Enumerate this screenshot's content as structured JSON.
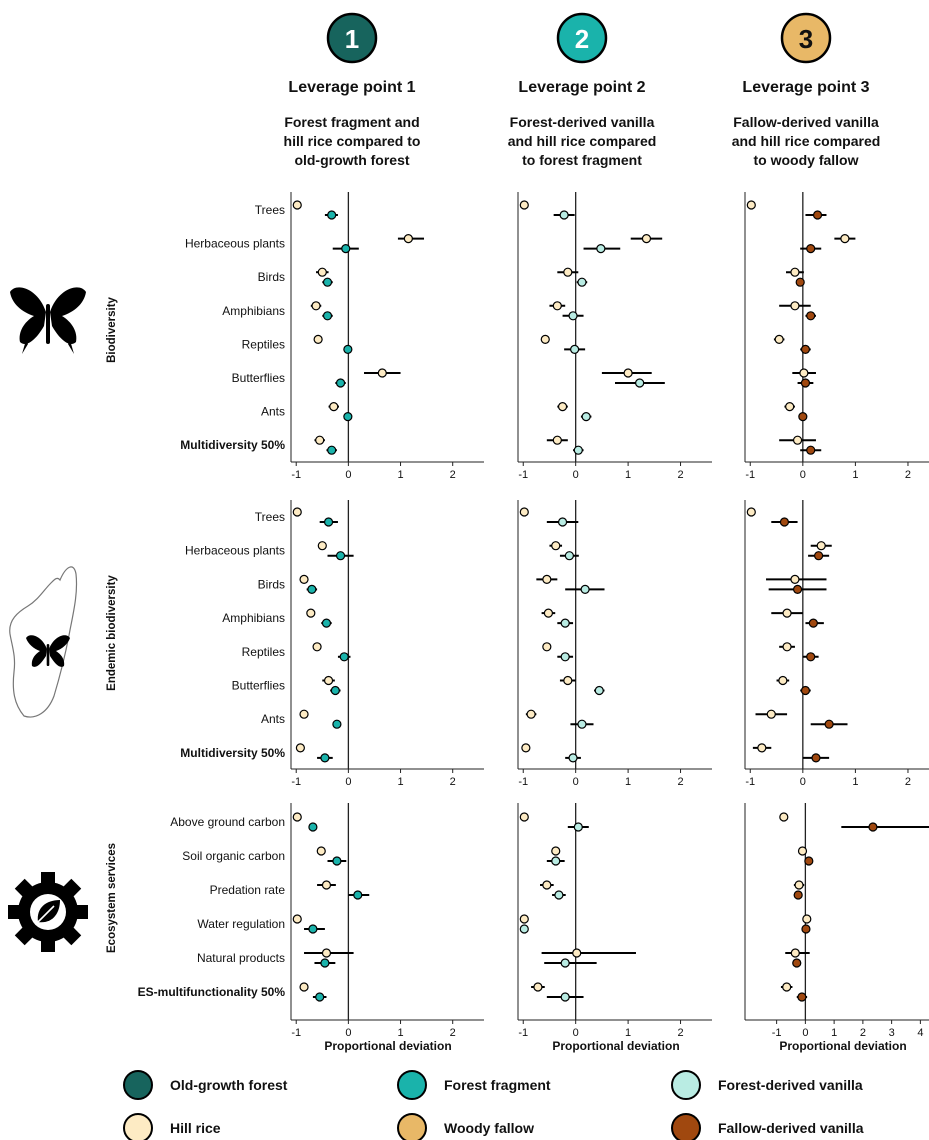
{
  "leverage_points": [
    {
      "badge": "1",
      "title": "Leverage point 1",
      "subtitle": [
        "Forest fragment and",
        "hill rice compared to",
        "old-growth forest"
      ],
      "color": "#17645d"
    },
    {
      "badge": "2",
      "title": "Leverage point 2",
      "subtitle": [
        "Forest-derived vanilla",
        "and hill rice compared",
        "to forest fragment"
      ],
      "color": "#1ab3ab"
    },
    {
      "badge": "3",
      "title": "Leverage point 3",
      "subtitle": [
        "Fallow-derived vanilla",
        "and hill rice compared",
        "to woody fallow"
      ],
      "color": "#e8b867"
    }
  ],
  "groups": [
    {
      "label": "Biodiversity",
      "icon": "butterfly-icon"
    },
    {
      "label": "Endemic biodiversity",
      "icon": "madagascar-butterfly-icon"
    },
    {
      "label": "Ecosystem services",
      "icon": "gear-leaf-icon"
    }
  ],
  "axis_title": "Proportional deviation",
  "legend": [
    {
      "label": "Old-growth forest",
      "color": "#17645d"
    },
    {
      "label": "Forest fragment",
      "color": "#1ab3ab"
    },
    {
      "label": "Forest-derived vanilla",
      "color": "#b9ece3"
    },
    {
      "label": "Hill rice",
      "color": "#fdebc4"
    },
    {
      "label": "Woody fallow",
      "color": "#e8b867"
    },
    {
      "label": "Fallow-derived vanilla",
      "color": "#a0480f"
    }
  ],
  "chart_data": {
    "type": "scatter",
    "description_of_values": "Point estimate with error bar (lo, hi) of proportional deviation relative to the reference land use",
    "xlim_lp12": [
      -1.1,
      2.6
    ],
    "xlim_lp3_rows_1_2": [
      -1.1,
      2.4
    ],
    "xlim_lp3_row_3": [
      -2.1,
      4.3
    ],
    "xticks_lp12": [
      "-1",
      "0",
      "1",
      "2"
    ],
    "xticks_lp3_rows_1_2": [
      "-1",
      "0",
      "1",
      "2"
    ],
    "xticks_lp3_row_3": [
      "-1",
      "0",
      "1",
      "2",
      "3",
      "4"
    ],
    "series_colors": {
      "a_lp1": "#fdebc4",
      "b_lp1": "#1ab3ab",
      "a_lp2": "#fdebc4",
      "b_lp2": "#b9ece3",
      "a_lp3": "#fdebc4",
      "b_lp3": "#a0480f"
    },
    "series_names": {
      "a": "Hill rice",
      "b_lp1": "Forest fragment",
      "b_lp2": "Forest-derived vanilla",
      "b_lp3": "Fallow-derived vanilla"
    },
    "panels": [
      {
        "group": "Biodiversity",
        "rows": [
          "Trees",
          "Herbaceous plants",
          "Birds",
          "Amphibians",
          "Reptiles",
          "Butterflies",
          "Ants",
          "Multidiversity 50%"
        ],
        "bold_rows": [
          7
        ],
        "lp": [
          {
            "a": [
              [
                -0.98,
                -0.98,
                -0.98
              ],
              [
                1.15,
                0.95,
                1.45
              ],
              [
                -0.5,
                -0.62,
                -0.38
              ],
              [
                -0.62,
                -0.72,
                -0.52
              ],
              [
                -0.58,
                -0.62,
                -0.54
              ],
              [
                0.65,
                0.3,
                1.0
              ],
              [
                -0.28,
                -0.38,
                -0.18
              ],
              [
                -0.55,
                -0.65,
                -0.45
              ]
            ],
            "b": [
              [
                -0.32,
                -0.45,
                -0.2
              ],
              [
                -0.05,
                -0.3,
                0.2
              ],
              [
                -0.4,
                -0.5,
                -0.3
              ],
              [
                -0.4,
                -0.5,
                -0.3
              ],
              [
                -0.01,
                -0.05,
                0.03
              ],
              [
                -0.15,
                -0.25,
                -0.05
              ],
              [
                -0.01,
                -0.05,
                0.03
              ],
              [
                -0.32,
                -0.42,
                -0.22
              ]
            ]
          },
          {
            "a": [
              [
                -0.98,
                -0.98,
                -0.98
              ],
              [
                1.35,
                1.05,
                1.65
              ],
              [
                -0.15,
                -0.35,
                0.05
              ],
              [
                -0.35,
                -0.5,
                -0.2
              ],
              [
                -0.58,
                -0.62,
                -0.54
              ],
              [
                1.0,
                0.5,
                1.45
              ],
              [
                -0.25,
                -0.35,
                -0.15
              ],
              [
                -0.35,
                -0.55,
                -0.15
              ]
            ],
            "b": [
              [
                -0.22,
                -0.42,
                -0.02
              ],
              [
                0.48,
                0.15,
                0.85
              ],
              [
                0.12,
                0.02,
                0.22
              ],
              [
                -0.05,
                -0.25,
                0.15
              ],
              [
                -0.02,
                -0.22,
                0.18
              ],
              [
                1.22,
                0.75,
                1.7
              ],
              [
                0.2,
                0.1,
                0.3
              ],
              [
                0.05,
                -0.05,
                0.15
              ]
            ]
          },
          {
            "a": [
              [
                -0.98,
                -0.98,
                -0.98
              ],
              [
                0.8,
                0.6,
                1.0
              ],
              [
                -0.15,
                -0.32,
                0.02
              ],
              [
                -0.15,
                -0.45,
                0.15
              ],
              [
                -0.45,
                -0.55,
                -0.35
              ],
              [
                0.02,
                -0.2,
                0.25
              ],
              [
                -0.25,
                -0.35,
                -0.15
              ],
              [
                -0.1,
                -0.45,
                0.25
              ]
            ],
            "b": [
              [
                0.28,
                0.05,
                0.45
              ],
              [
                0.15,
                -0.05,
                0.35
              ],
              [
                -0.05,
                -0.1,
                0.0
              ],
              [
                0.15,
                0.05,
                0.25
              ],
              [
                0.05,
                -0.05,
                0.15
              ],
              [
                0.05,
                -0.1,
                0.2
              ],
              [
                0.0,
                -0.05,
                0.05
              ],
              [
                0.15,
                -0.05,
                0.35
              ]
            ]
          }
        ]
      },
      {
        "group": "Endemic biodiversity",
        "rows": [
          "Trees",
          "Herbaceous plants",
          "Birds",
          "Amphibians",
          "Reptiles",
          "Butterflies",
          "Ants",
          "Multidiversity 50%"
        ],
        "bold_rows": [
          7
        ],
        "lp": [
          {
            "a": [
              [
                -0.98,
                -0.98,
                -0.98
              ],
              [
                -0.5,
                -0.55,
                -0.45
              ],
              [
                -0.85,
                -0.9,
                -0.8
              ],
              [
                -0.72,
                -0.8,
                -0.64
              ],
              [
                -0.6,
                -0.64,
                -0.56
              ],
              [
                -0.38,
                -0.5,
                -0.26
              ],
              [
                -0.85,
                -0.9,
                -0.8
              ],
              [
                -0.92,
                -0.96,
                -0.88
              ]
            ],
            "b": [
              [
                -0.38,
                -0.55,
                -0.2
              ],
              [
                -0.15,
                -0.4,
                0.1
              ],
              [
                -0.7,
                -0.8,
                -0.6
              ],
              [
                -0.42,
                -0.52,
                -0.32
              ],
              [
                -0.08,
                -0.2,
                0.04
              ],
              [
                -0.25,
                -0.35,
                -0.15
              ],
              [
                -0.22,
                -0.26,
                -0.18
              ],
              [
                -0.45,
                -0.6,
                -0.3
              ]
            ]
          },
          {
            "a": [
              [
                -0.98,
                -0.98,
                -0.98
              ],
              [
                -0.38,
                -0.5,
                -0.26
              ],
              [
                -0.55,
                -0.75,
                -0.35
              ],
              [
                -0.52,
                -0.65,
                -0.39
              ],
              [
                -0.55,
                -0.6,
                -0.5
              ],
              [
                -0.15,
                -0.3,
                0.0
              ],
              [
                -0.85,
                -0.95,
                -0.75
              ],
              [
                -0.95,
                -0.99,
                -0.91
              ]
            ],
            "b": [
              [
                -0.25,
                -0.55,
                0.05
              ],
              [
                -0.12,
                -0.3,
                0.06
              ],
              [
                0.18,
                -0.2,
                0.55
              ],
              [
                -0.2,
                -0.35,
                -0.05
              ],
              [
                -0.2,
                -0.35,
                -0.05
              ],
              [
                0.45,
                0.35,
                0.55
              ],
              [
                0.12,
                -0.1,
                0.34
              ],
              [
                -0.05,
                -0.2,
                0.1
              ]
            ]
          },
          {
            "a": [
              [
                -0.98,
                -0.98,
                -0.98
              ],
              [
                0.35,
                0.15,
                0.55
              ],
              [
                -0.15,
                -0.7,
                0.45
              ],
              [
                -0.3,
                -0.6,
                0.0
              ],
              [
                -0.3,
                -0.45,
                -0.15
              ],
              [
                -0.38,
                -0.5,
                -0.26
              ],
              [
                -0.6,
                -0.9,
                -0.3
              ],
              [
                -0.78,
                -0.95,
                -0.6
              ]
            ],
            "b": [
              [
                -0.35,
                -0.6,
                -0.1
              ],
              [
                0.3,
                0.1,
                0.5
              ],
              [
                -0.1,
                -0.65,
                0.45
              ],
              [
                0.2,
                0.05,
                0.4
              ],
              [
                0.15,
                0.0,
                0.3
              ],
              [
                0.05,
                -0.05,
                0.15
              ],
              [
                0.5,
                0.15,
                0.85
              ],
              [
                0.25,
                0.0,
                0.5
              ]
            ]
          }
        ]
      },
      {
        "group": "Ecosystem services",
        "rows": [
          "Above ground carbon",
          "Soil organic carbon",
          "Predation rate",
          "Water regulation",
          "Natural products",
          "ES-multifunctionality 50%"
        ],
        "bold_rows": [
          5
        ],
        "lp": [
          {
            "a": [
              [
                -0.98,
                -0.98,
                -0.98
              ],
              [
                -0.52,
                -0.56,
                -0.48
              ],
              [
                -0.42,
                -0.6,
                -0.24
              ],
              [
                -0.98,
                -0.98,
                -0.98
              ],
              [
                -0.42,
                -0.85,
                0.1
              ],
              [
                -0.85,
                -0.9,
                -0.8
              ]
            ],
            "b": [
              [
                -0.68,
                -0.75,
                -0.61
              ],
              [
                -0.22,
                -0.4,
                -0.04
              ],
              [
                0.18,
                0.0,
                0.4
              ],
              [
                -0.68,
                -0.85,
                -0.45
              ],
              [
                -0.45,
                -0.65,
                -0.25
              ],
              [
                -0.55,
                -0.68,
                -0.42
              ]
            ]
          },
          {
            "a": [
              [
                -0.98,
                -0.98,
                -0.98
              ],
              [
                -0.38,
                -0.45,
                -0.31
              ],
              [
                -0.55,
                -0.68,
                -0.42
              ],
              [
                -0.98,
                -0.98,
                -0.98
              ],
              [
                0.02,
                -0.65,
                1.15
              ],
              [
                -0.72,
                -0.85,
                -0.59
              ]
            ],
            "b": [
              [
                0.05,
                -0.15,
                0.25
              ],
              [
                -0.38,
                -0.55,
                -0.21
              ],
              [
                -0.32,
                -0.45,
                -0.19
              ],
              [
                -0.98,
                -0.98,
                -0.98
              ],
              [
                -0.2,
                -0.6,
                0.4
              ],
              [
                -0.2,
                -0.55,
                0.15
              ]
            ]
          },
          {
            "a": [
              [
                -0.75,
                -0.75,
                -0.75
              ],
              [
                -0.1,
                -0.2,
                0.0
              ],
              [
                -0.22,
                -0.4,
                -0.04
              ],
              [
                0.05,
                0.0,
                0.1
              ],
              [
                -0.35,
                -0.7,
                0.15
              ],
              [
                -0.65,
                -0.85,
                -0.45
              ]
            ],
            "b": [
              [
                2.35,
                1.25,
                4.3
              ],
              [
                0.12,
                0.02,
                0.22
              ],
              [
                -0.25,
                -0.4,
                -0.1
              ],
              [
                0.02,
                -0.08,
                0.12
              ],
              [
                -0.3,
                -0.45,
                -0.15
              ],
              [
                -0.12,
                -0.3,
                0.06
              ]
            ]
          }
        ]
      }
    ]
  }
}
